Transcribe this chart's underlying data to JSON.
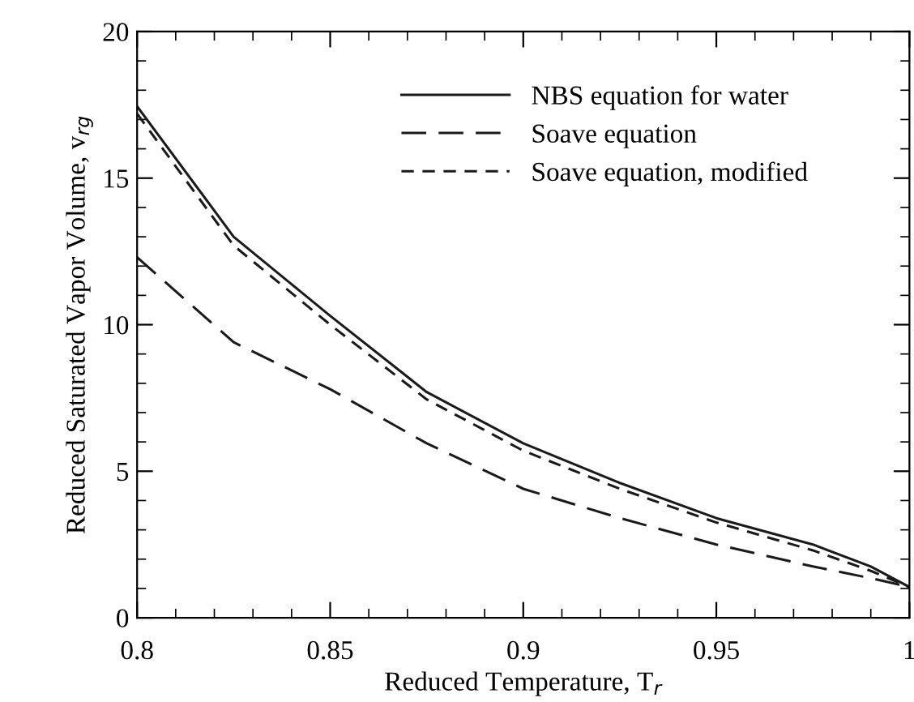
{
  "chart_data": {
    "type": "line",
    "xlabel": "Reduced Temperature, T$_{r}$",
    "ylabel": "Reduced Saturated Vapor Volume, v$_{rg}$",
    "x": [
      0.8,
      0.825,
      0.85,
      0.875,
      0.9,
      0.925,
      0.95,
      0.975,
      0.99,
      1.0
    ],
    "series": [
      {
        "name": "NBS equation for water",
        "color": "#1a1a1a",
        "line_style": "solid",
        "values": [
          17.45,
          13.0,
          10.3,
          7.7,
          5.95,
          4.6,
          3.4,
          2.5,
          1.75,
          1.05
        ]
      },
      {
        "name": "Soave equation",
        "color": "#1a1a1a",
        "line_style": "dashed",
        "values": [
          12.3,
          9.4,
          7.8,
          5.95,
          4.4,
          3.4,
          2.5,
          1.75,
          1.35,
          1.05
        ]
      },
      {
        "name": "Soave equation, modified",
        "color": "#1a1a1a",
        "line_style": "dashed",
        "values": [
          17.2,
          12.7,
          10.0,
          7.45,
          5.7,
          4.4,
          3.25,
          2.3,
          1.6,
          1.05
        ]
      }
    ],
    "xlim": [
      0.8,
      1.0
    ],
    "ylim": [
      0,
      20
    ],
    "xticks": [
      0.8,
      0.85,
      0.9,
      0.95,
      {
        "value": 1.0,
        "label": "1"
      }
    ],
    "yticks": [
      0,
      5,
      10,
      15,
      20
    ],
    "grid": false,
    "legend": "top right",
    "marker": "none"
  }
}
